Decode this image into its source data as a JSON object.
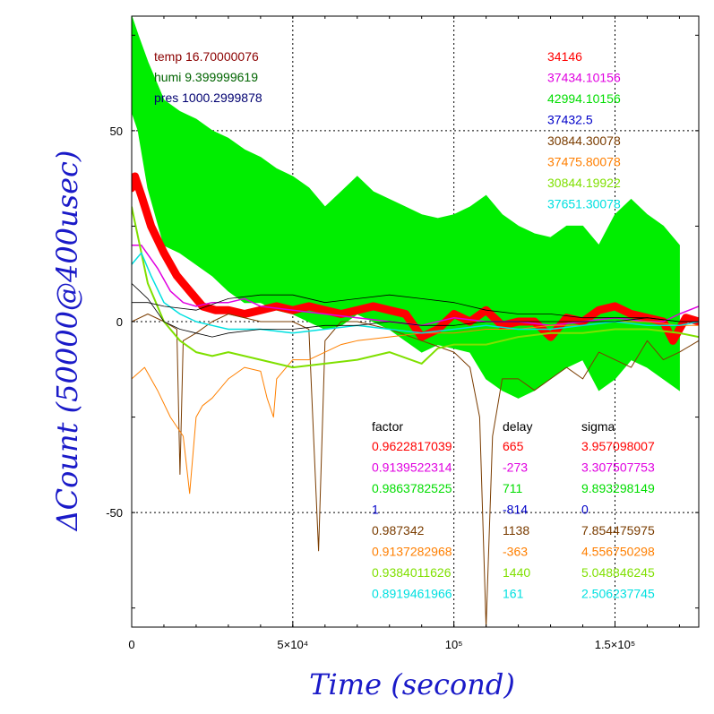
{
  "chart_data": {
    "type": "line",
    "xlabel": "Time (second)",
    "ylabel": "ΔCount (50000@400usec)",
    "xlim": [
      0,
      176000
    ],
    "ylim": [
      -80,
      80
    ],
    "x_ticks": [
      {
        "value": 0,
        "label": "0"
      },
      {
        "value": 50000,
        "label": "5×10⁴"
      },
      {
        "value": 100000,
        "label": "10⁵"
      },
      {
        "value": 150000,
        "label": "1.5×10⁵"
      }
    ],
    "y_ticks": [
      {
        "value": 50,
        "label": "50"
      },
      {
        "value": 0,
        "label": "0"
      },
      {
        "value": -50,
        "label": "-50"
      }
    ],
    "grid": true,
    "env_labels": [
      {
        "text": "temp 16.70000076",
        "color": "#8b0000"
      },
      {
        "text": "humi 9.399999619",
        "color": "#006400"
      },
      {
        "text": "pres 1000.2999878",
        "color": "#000070"
      }
    ],
    "series_ids": [
      {
        "text": "34146",
        "color": "#ff0000"
      },
      {
        "text": "37434.10156",
        "color": "#e000e0"
      },
      {
        "text": "42994.10156",
        "color": "#00dd00"
      },
      {
        "text": "37432.5",
        "color": "#0000c8"
      },
      {
        "text": "30844.30078",
        "color": "#7a3c00"
      },
      {
        "text": "37475.80078",
        "color": "#ff7f00"
      },
      {
        "text": "30844.19922",
        "color": "#7fe000"
      },
      {
        "text": "37651.30078",
        "color": "#00e0e0"
      }
    ],
    "table": {
      "headers": [
        "factor",
        "delay",
        "sigma"
      ],
      "rows": [
        {
          "factor": "0.9622817039",
          "delay": "665",
          "sigma": "3.957098007",
          "color": "#ff0000"
        },
        {
          "factor": "0.9139522314",
          "delay": "-273",
          "sigma": "3.307507753",
          "color": "#e000e0"
        },
        {
          "factor": "0.9863782525",
          "delay": "711",
          "sigma": "9.893298149",
          "color": "#00dd00"
        },
        {
          "factor": "1",
          "delay": "-814",
          "sigma": "0",
          "color": "#0000c8"
        },
        {
          "factor": "0.987342",
          "delay": "1138",
          "sigma": "7.854475975",
          "color": "#7a3c00"
        },
        {
          "factor": "0.9137282968",
          "delay": "-363",
          "sigma": "4.556750298",
          "color": "#ff7f00"
        },
        {
          "factor": "0.9384011626",
          "delay": "1440",
          "sigma": "5.048846245",
          "color": "#7fe000"
        },
        {
          "factor": "0.8919461966",
          "delay": "161",
          "sigma": "2.506237745",
          "color": "#00e0e0"
        }
      ]
    },
    "series": [
      {
        "color": "#00ee00",
        "band": true,
        "x": [
          0,
          2000,
          5000,
          10000,
          15000,
          20000,
          25000,
          30000,
          35000,
          40000,
          45000,
          50000,
          55000,
          60000,
          65000,
          70000,
          75000,
          80000,
          85000,
          90000,
          95000,
          100000,
          105000,
          110000,
          115000,
          120000,
          125000,
          130000,
          135000,
          140000,
          145000,
          150000,
          155000,
          160000,
          165000,
          170000
        ],
        "upper": [
          80,
          75,
          68,
          58,
          55,
          53,
          50,
          48,
          45,
          43,
          40,
          38,
          35,
          30,
          34,
          38,
          34,
          32,
          30,
          28,
          27,
          28,
          30,
          33,
          28,
          25,
          23,
          22,
          25,
          25,
          20,
          28,
          32,
          28,
          25,
          20
        ],
        "lower": [
          55,
          50,
          35,
          20,
          18,
          15,
          12,
          8,
          5,
          5,
          3,
          2,
          0,
          -2,
          -1,
          2,
          0,
          -2,
          -5,
          -8,
          -6,
          -7,
          -8,
          -15,
          -18,
          -20,
          -18,
          -15,
          -12,
          -10,
          -18,
          -15,
          -10,
          -12,
          -15,
          -18
        ]
      },
      {
        "color": "#ff0000",
        "width": 9,
        "x": [
          0,
          1000,
          3000,
          6000,
          10000,
          14000,
          18000,
          22000,
          26000,
          30000,
          35000,
          40000,
          45000,
          50000,
          55000,
          60000,
          65000,
          70000,
          75000,
          80000,
          85000,
          90000,
          95000,
          100000,
          105000,
          110000,
          115000,
          120000,
          125000,
          130000,
          135000,
          140000,
          145000,
          150000,
          155000,
          160000,
          165000,
          168000,
          172000,
          176000
        ],
        "y": [
          35,
          38,
          33,
          25,
          18,
          12,
          8,
          4,
          3,
          3,
          2,
          3,
          4,
          3,
          4,
          3,
          2,
          3,
          4,
          3,
          2,
          -4,
          -2,
          2,
          0,
          3,
          -1,
          0,
          0,
          -4,
          1,
          0,
          3,
          4,
          2,
          1,
          0,
          -5,
          1,
          0
        ]
      },
      {
        "color": "#e000e0",
        "width": 1.5,
        "x": [
          0,
          3000,
          8000,
          12000,
          16000,
          20000,
          25000,
          30000,
          35000,
          40000,
          50000,
          60000,
          70000,
          80000,
          90000,
          95000,
          100000,
          110000,
          120000,
          130000,
          140000,
          150000,
          160000,
          165000,
          170000,
          176000
        ],
        "y": [
          20,
          20,
          14,
          8,
          5,
          4,
          5,
          5,
          6,
          4,
          3,
          2,
          1,
          0,
          -1,
          0,
          1,
          0,
          0,
          -1,
          0,
          1,
          0,
          0,
          2,
          4
        ]
      },
      {
        "color": "#7a3c00",
        "width": 1,
        "x": [
          0,
          5000,
          10000,
          14000,
          15000,
          16000,
          20000,
          25000,
          30000,
          40000,
          50000,
          55000,
          58000,
          60000,
          65000,
          70000,
          80000,
          90000,
          100000,
          105000,
          108000,
          110000,
          112000,
          115000,
          120000,
          125000,
          130000,
          135000,
          140000,
          145000,
          150000,
          155000,
          160000,
          165000,
          170000,
          176000
        ],
        "y": [
          0,
          2,
          0,
          -2,
          -40,
          -5,
          -3,
          0,
          2,
          0,
          0,
          -2,
          -60,
          -5,
          0,
          0,
          -2,
          -5,
          -8,
          -12,
          -25,
          -80,
          -30,
          -15,
          -15,
          -18,
          -15,
          -12,
          -15,
          -8,
          -10,
          -12,
          -5,
          -10,
          -8,
          -5
        ]
      },
      {
        "color": "#ff8000",
        "width": 1,
        "x": [
          0,
          4000,
          8000,
          12000,
          16000,
          18000,
          20000,
          22000,
          25000,
          30000,
          35000,
          40000,
          42000,
          44000,
          45000,
          48000,
          50000,
          55000,
          60000,
          65000,
          70000,
          80000,
          90000,
          100000,
          110000,
          120000,
          130000,
          140000,
          150000,
          160000,
          170000,
          176000
        ],
        "y": [
          -15,
          -12,
          -18,
          -25,
          -30,
          -45,
          -25,
          -22,
          -20,
          -15,
          -12,
          -13,
          -20,
          -25,
          -15,
          -12,
          -10,
          -10,
          -8,
          -6,
          -5,
          -4,
          -3,
          -3,
          -2,
          -2,
          -1,
          -1,
          0,
          0,
          -1,
          -1
        ]
      },
      {
        "color": "#7fe000",
        "width": 2,
        "x": [
          0,
          2000,
          5000,
          10000,
          15000,
          20000,
          25000,
          30000,
          35000,
          40000,
          50000,
          60000,
          70000,
          80000,
          90000,
          95000,
          100000,
          110000,
          120000,
          130000,
          140000,
          150000,
          160000,
          170000,
          176000
        ],
        "y": [
          30,
          22,
          10,
          0,
          -5,
          -8,
          -9,
          -8,
          -9,
          -10,
          -12,
          -11,
          -10,
          -8,
          -11,
          -7,
          -6,
          -6,
          -4,
          -3,
          -3,
          -2,
          -2,
          -3,
          -4
        ]
      },
      {
        "color": "#00e0e0",
        "width": 1.5,
        "x": [
          0,
          3000,
          6000,
          10000,
          15000,
          20000,
          25000,
          30000,
          35000,
          40000,
          50000,
          60000,
          70000,
          80000,
          90000,
          100000,
          110000,
          120000,
          130000,
          140000,
          150000,
          160000,
          170000,
          176000
        ],
        "y": [
          15,
          18,
          12,
          5,
          2,
          0,
          -1,
          -2,
          -2,
          -2,
          -3,
          -2,
          -1,
          -2,
          -3,
          -2,
          -1,
          -2,
          -2,
          -1,
          0,
          -1,
          -1,
          0
        ]
      },
      {
        "color": "#000000",
        "width": 0.8,
        "x": [
          0,
          5000,
          10000,
          20000,
          30000,
          40000,
          50000,
          60000,
          70000,
          80000,
          90000,
          100000,
          110000,
          120000,
          130000,
          140000,
          150000,
          160000,
          170000,
          176000
        ],
        "y": [
          5,
          5,
          4,
          3,
          6,
          7,
          7,
          5,
          6,
          7,
          6,
          5,
          3,
          2,
          2,
          1,
          1,
          1,
          0,
          0
        ]
      },
      {
        "color": "#000000",
        "width": 0.8,
        "x": [
          0,
          5000,
          10000,
          15000,
          20000,
          25000,
          30000,
          40000,
          50000,
          60000,
          70000,
          80000,
          90000,
          100000,
          110000,
          120000,
          130000,
          140000,
          150000,
          160000,
          170000,
          176000
        ],
        "y": [
          10,
          6,
          0,
          -2,
          -3,
          -4,
          -3,
          -2,
          -2,
          -1,
          -1,
          0,
          -1,
          -1,
          0,
          0,
          0,
          0,
          0,
          1,
          0,
          0
        ]
      }
    ]
  }
}
